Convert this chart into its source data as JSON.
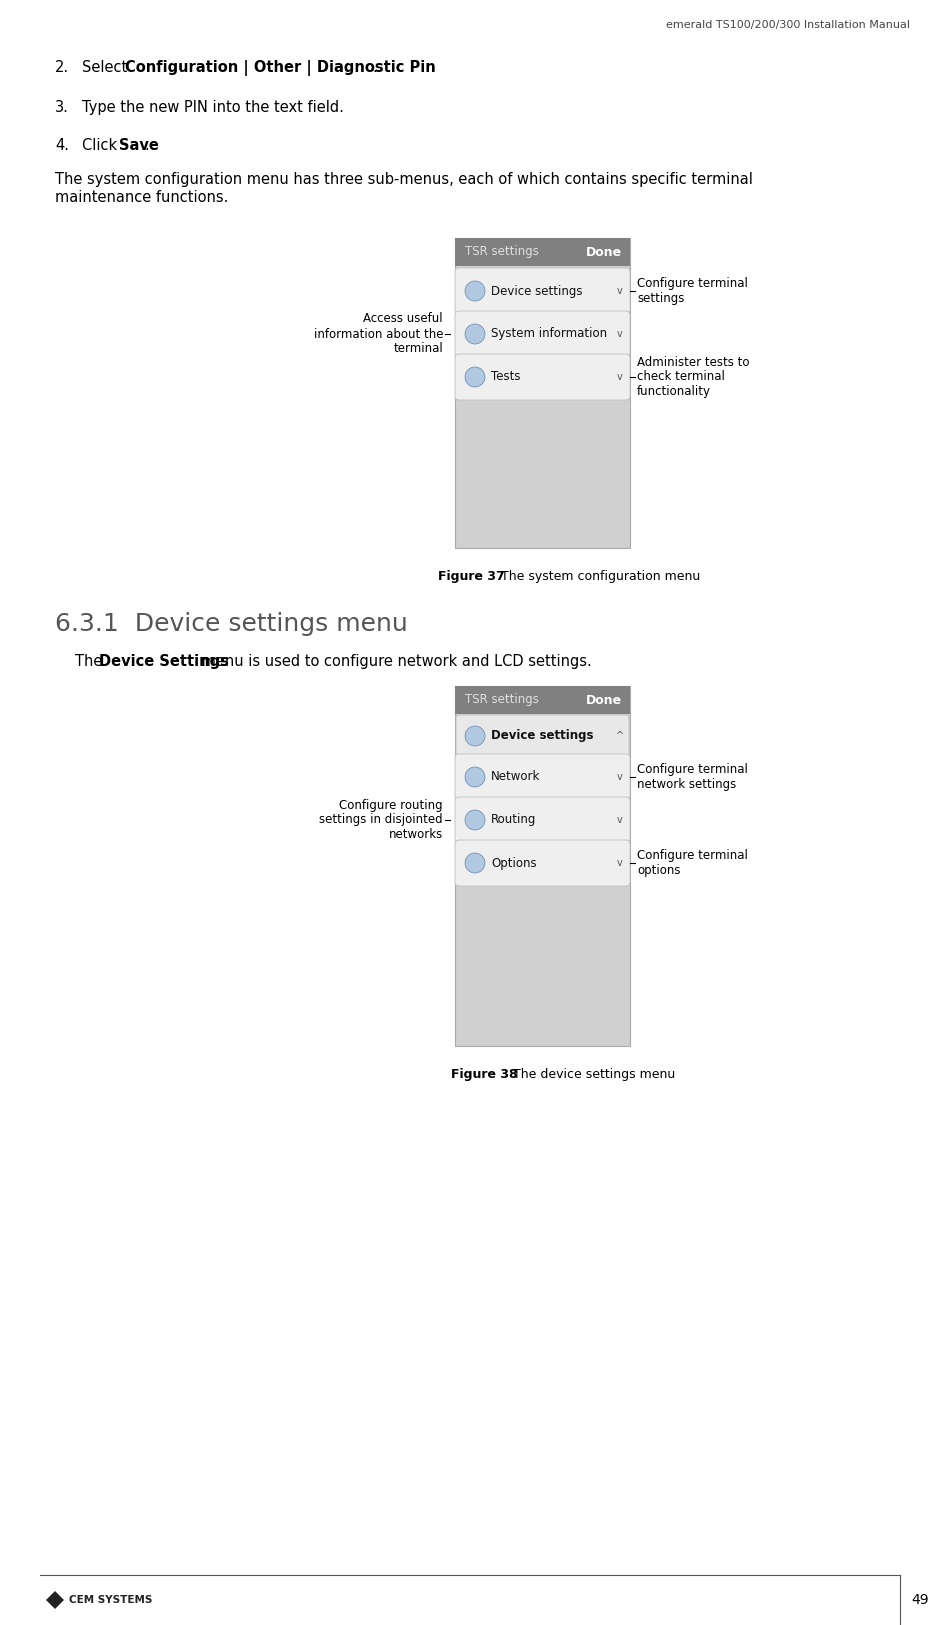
{
  "page_title": "emerald TS100/200/300 Installation Manual",
  "page_number": "49",
  "bg_color": "#ffffff",
  "text_color": "#000000",
  "para1_line1": "The system configuration menu has three sub-menus, each of which contains specific terminal",
  "para1_line2": "maintenance functions.",
  "fig37_caption_bold": "Figure 37",
  "fig37_caption_normal": " The system configuration menu",
  "fig38_caption_bold": "Figure 38",
  "fig38_caption_normal": " The device settings menu",
  "section_title": "6.3.1  Device settings menu",
  "section_para_pre": "The ",
  "section_para_bold": "Device Settings",
  "section_para_post": " menu is used to configure network and LCD settings.",
  "item2_pre": "Select ",
  "item2_bold": "Configuration | Other | Diagnostic Pin",
  "item2_post": ".",
  "item3": "Type the new PIN into the text field.",
  "item4_pre": "Click ",
  "item4_bold": "Save",
  "item4_post": ".",
  "menu1_title": "TSR settings",
  "menu1_done": "Done",
  "menu1_rows": [
    "Device settings",
    "System information",
    "Tests"
  ],
  "menu2_title": "TSR settings",
  "menu2_done": "Done",
  "menu2_header": "Device settings",
  "menu2_rows": [
    "Network",
    "Routing",
    "Options"
  ],
  "ann1_left": "Access useful\ninformation about the\nterminal",
  "ann1_right0": "Configure terminal\nsettings",
  "ann1_right2": "Administer tests to\ncheck terminal\nfunctionality",
  "ann2_left": "Configure routing\nsettings in disjointed\nnetworks",
  "ann2_right0": "Configure terminal\nnetwork settings",
  "ann2_right2": "Configure terminal\noptions",
  "cem_text": "CEM SYSTEMS",
  "gray_bg": "#d0d0d0",
  "menu_hdr_bg": "#808080",
  "row_bg": "#efefef",
  "row_border": "#c0c0c0",
  "sel_bg": "#4a7eb5",
  "sel_fg": "#ffffff"
}
